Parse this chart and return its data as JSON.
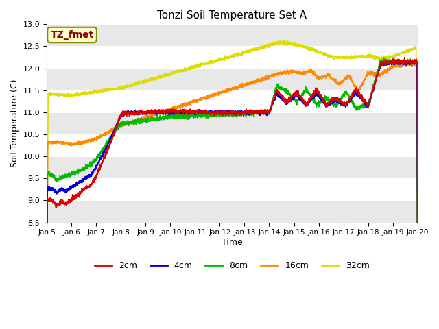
{
  "title": "Tonzi Soil Temperature Set A",
  "xlabel": "Time",
  "ylabel": "Soil Temperature (C)",
  "ylim": [
    8.5,
    13.0
  ],
  "x_tick_labels": [
    "Jan 5",
    "Jan 6",
    "Jan 7",
    "Jan 8",
    "Jan 9",
    "Jan 10",
    "Jan 11",
    "Jan 12",
    "Jan 13",
    "Jan 14",
    "Jan 15",
    "Jan 16",
    "Jan 17",
    "Jan 18",
    "Jan 19",
    "Jan 20"
  ],
  "annotation_label": "TZ_fmet",
  "annotation_box_facecolor": "#ffffcc",
  "annotation_box_edgecolor": "#888800",
  "annotation_text_color": "#880000",
  "plot_bg_colors": [
    "#ffffff",
    "#e8e8e8"
  ],
  "colors": {
    "2cm": "#dd0000",
    "4cm": "#0000dd",
    "8cm": "#00bb00",
    "16cm": "#ff8800",
    "32cm": "#dddd00"
  },
  "yticks": [
    8.5,
    9.0,
    9.5,
    10.0,
    10.5,
    11.0,
    11.5,
    12.0,
    12.5,
    13.0
  ]
}
